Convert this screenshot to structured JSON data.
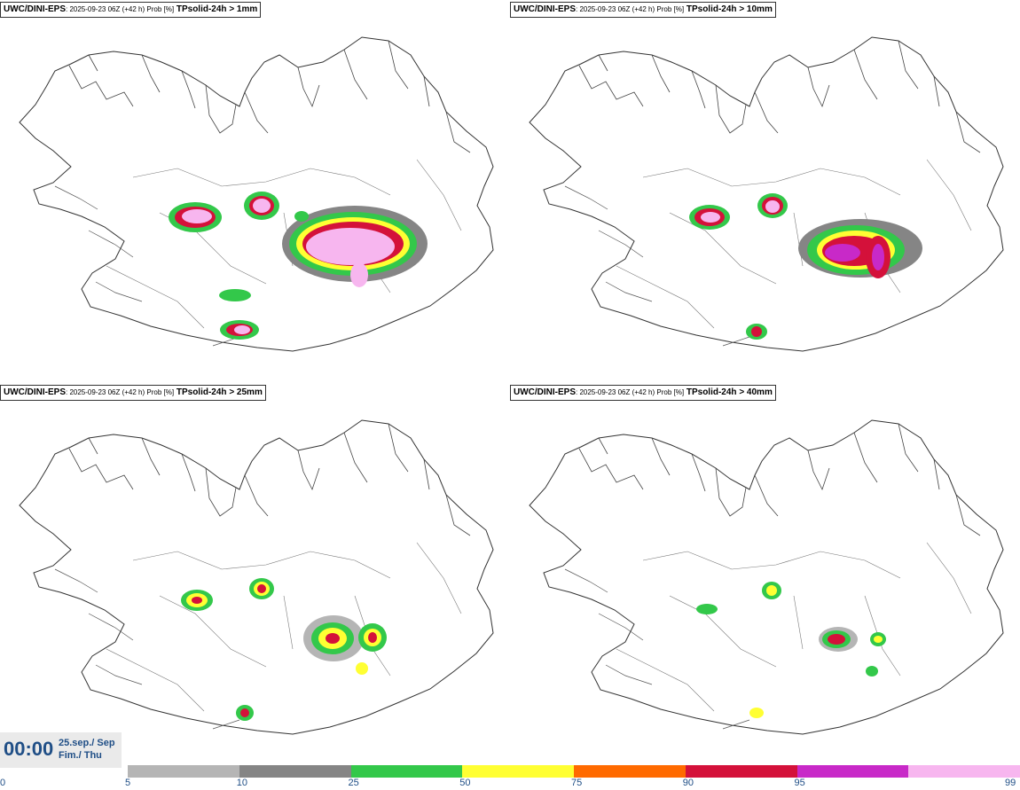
{
  "panels": [
    {
      "model": "UWC/DINI-EPS",
      "meta": ": 2025-09-23 06Z (+42 h) Prob [%]",
      "variable": "TPsolid-24h > 1mm"
    },
    {
      "model": "UWC/DINI-EPS",
      "meta": ": 2025-09-23 06Z (+42 h) Prob [%]",
      "variable": "TPsolid-24h > 10mm"
    },
    {
      "model": "UWC/DINI-EPS",
      "meta": ": 2025-09-23 06Z (+42 h) Prob [%]",
      "variable": "TPsolid-24h > 25mm"
    },
    {
      "model": "UWC/DINI-EPS",
      "meta": ": 2025-09-23 06Z (+42 h) Prob [%]",
      "variable": "TPsolid-24h > 40mm"
    }
  ],
  "time": {
    "clock": "00:00",
    "date_line": "25.sep./ Sep",
    "day_line": "Fim./ Thu"
  },
  "colorbar": {
    "ticks": [
      "0",
      "5",
      "10",
      "25",
      "50",
      "75",
      "90",
      "95",
      "99"
    ],
    "colors": [
      "#b5b5b5",
      "#858585",
      "#33c84a",
      "#ffff33",
      "#ff6a00",
      "#d4113a",
      "#c829c8",
      "#f7b6ef"
    ]
  }
}
